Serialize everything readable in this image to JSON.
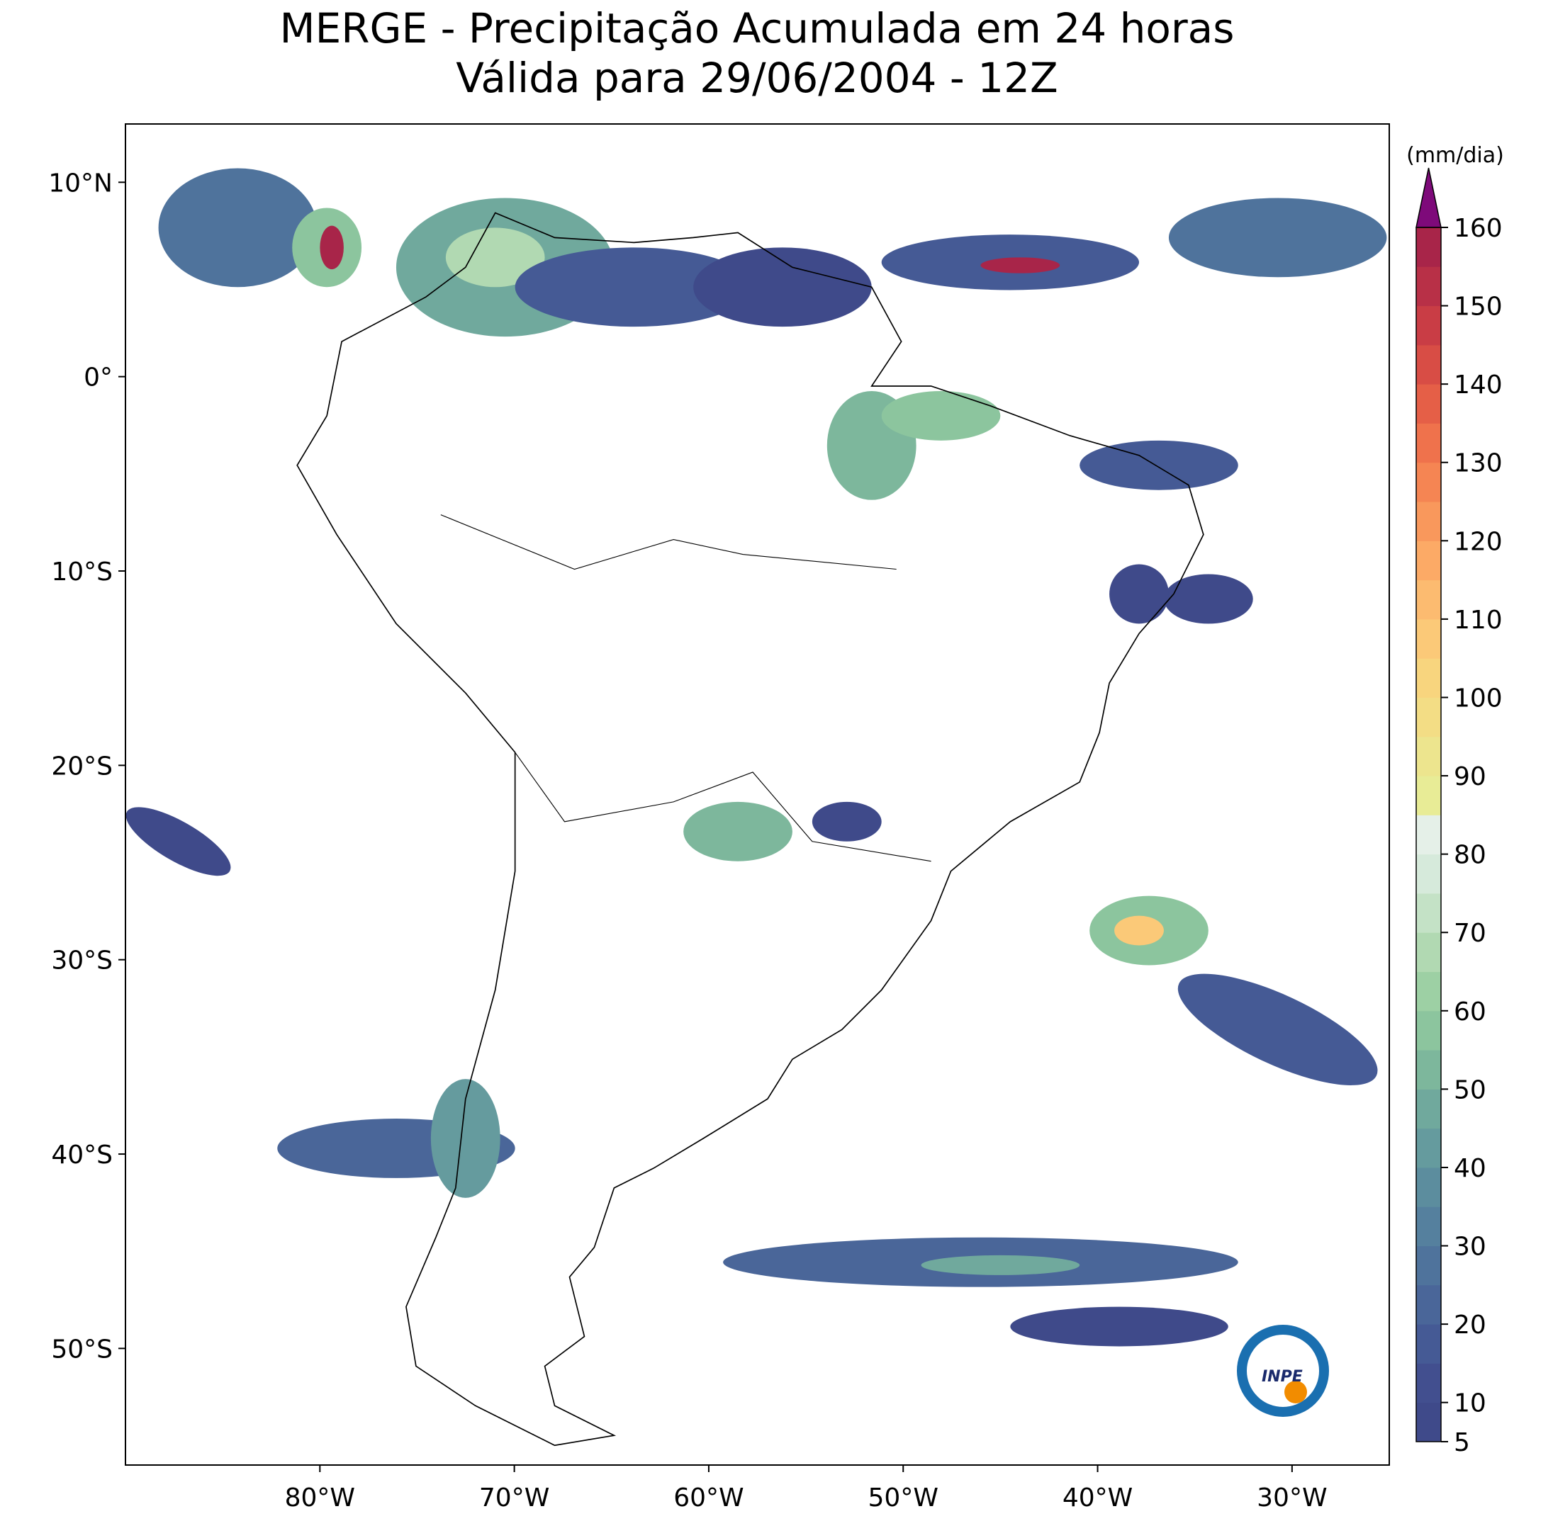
{
  "map": {
    "title": "MERGE - Precipitação Acumulada em 24 horas",
    "subtitle": "Válida para 29/06/2004 - 12Z",
    "xlim": [
      -90,
      -25
    ],
    "ylim": [
      -56,
      13
    ],
    "xticks": [
      {
        "value": -80,
        "label": "80°W"
      },
      {
        "value": -70,
        "label": "70°W"
      },
      {
        "value": -60,
        "label": "60°W"
      },
      {
        "value": -50,
        "label": "50°W"
      },
      {
        "value": -40,
        "label": "40°W"
      },
      {
        "value": -30,
        "label": "30°W"
      }
    ],
    "yticks": [
      {
        "value": 10,
        "label": "10°N"
      },
      {
        "value": 0,
        "label": "0°"
      },
      {
        "value": -10,
        "label": "10°S"
      },
      {
        "value": -20,
        "label": "20°S"
      },
      {
        "value": -30,
        "label": "30°S"
      },
      {
        "value": -40,
        "label": "40°S"
      },
      {
        "value": -50,
        "label": "50°S"
      }
    ],
    "colorbar": {
      "label": "(mm/dia)",
      "lim": [
        5,
        160
      ],
      "ticks": [
        5,
        10,
        20,
        30,
        40,
        50,
        60,
        70,
        80,
        90,
        100,
        110,
        120,
        130,
        140,
        150,
        160
      ],
      "colors": [
        "#3f4a8a",
        "#424f8f",
        "#455a95",
        "#4a6699",
        "#4f739c",
        "#55809e",
        "#5c8d9e",
        "#659b9e",
        "#70a99d",
        "#7db79c",
        "#8cc59e",
        "#9dd0a4",
        "#b1d9b2",
        "#c4e2c6",
        "#d6eadb",
        "#e5f0e8",
        "#e8ec96",
        "#ede58e",
        "#f3dd85",
        "#f8d57e",
        "#fbc978",
        "#fcbb70",
        "#fcaa66",
        "#f9985c",
        "#f58553",
        "#ef724c",
        "#e55f47",
        "#d84d45",
        "#c93d45",
        "#b83047",
        "#a82549"
      ],
      "extend_color": "#7e0a7a"
    },
    "logo": "INPE"
  }
}
